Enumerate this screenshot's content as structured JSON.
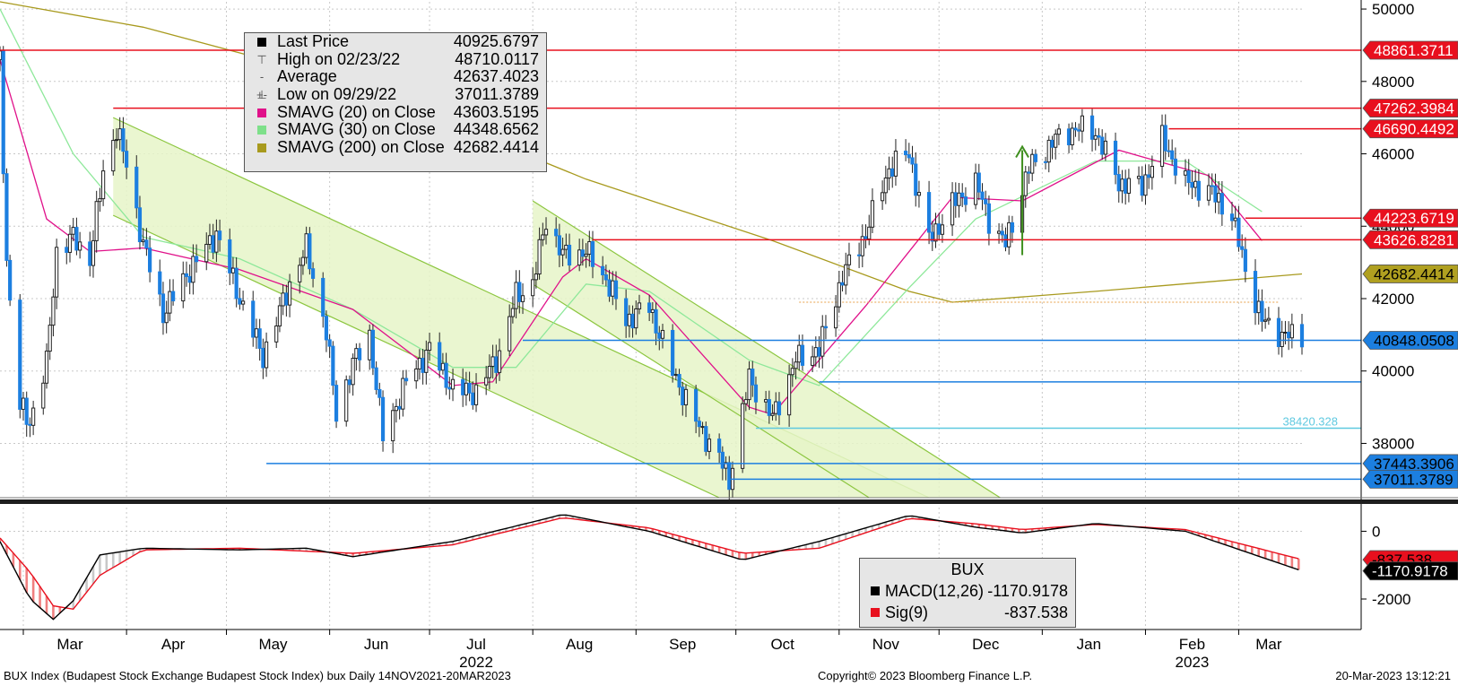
{
  "chart_data": {
    "type": "candlestick",
    "x_start": "2022-02-22",
    "x_end": "2023-03-20",
    "ylim": [
      36500,
      50200
    ],
    "y_ticks": [
      38000,
      40000,
      42000,
      44000,
      46000,
      48000,
      50000
    ],
    "y_tick_labels": [
      "38000",
      "40000",
      "42000",
      "44000",
      "46000",
      "48000",
      "50000"
    ],
    "month_labels": [
      {
        "label": "Mar",
        "date": "2022-03-15"
      },
      {
        "label": "Apr",
        "date": "2022-04-15"
      },
      {
        "label": "May",
        "date": "2022-05-15"
      },
      {
        "label": "Jun",
        "date": "2022-06-15"
      },
      {
        "label": "Jul",
        "date": "2022-07-15"
      },
      {
        "label": "Aug",
        "date": "2022-08-15"
      },
      {
        "label": "Sep",
        "date": "2022-09-15"
      },
      {
        "label": "Oct",
        "date": "2022-10-15"
      },
      {
        "label": "Nov",
        "date": "2022-11-15"
      },
      {
        "label": "Dec",
        "date": "2022-12-15"
      },
      {
        "label": "Jan",
        "date": "2023-01-15"
      },
      {
        "label": "Feb",
        "date": "2023-02-15"
      },
      {
        "label": "Mar",
        "date": "2023-03-10"
      }
    ],
    "year_labels": [
      {
        "label": "2022",
        "date": "2022-07-15"
      },
      {
        "label": "2023",
        "date": "2023-02-15"
      }
    ],
    "closes": [
      {
        "d": "2022-02-22",
        "v": 48600
      },
      {
        "d": "2022-02-24",
        "v": 43000
      },
      {
        "d": "2022-02-28",
        "v": 39000
      },
      {
        "d": "2022-03-03",
        "v": 38600
      },
      {
        "d": "2022-03-08",
        "v": 40200
      },
      {
        "d": "2022-03-11",
        "v": 43300
      },
      {
        "d": "2022-03-16",
        "v": 43700
      },
      {
        "d": "2022-03-21",
        "v": 43100
      },
      {
        "d": "2022-03-25",
        "v": 45500
      },
      {
        "d": "2022-03-29",
        "v": 46700
      },
      {
        "d": "2022-04-01",
        "v": 45700
      },
      {
        "d": "2022-04-06",
        "v": 43500
      },
      {
        "d": "2022-04-12",
        "v": 41600
      },
      {
        "d": "2022-04-20",
        "v": 42800
      },
      {
        "d": "2022-04-28",
        "v": 43800
      },
      {
        "d": "2022-05-05",
        "v": 42000
      },
      {
        "d": "2022-05-12",
        "v": 40400
      },
      {
        "d": "2022-05-20",
        "v": 42400
      },
      {
        "d": "2022-05-25",
        "v": 43400
      },
      {
        "d": "2022-05-31",
        "v": 41100
      },
      {
        "d": "2022-06-03",
        "v": 38800
      },
      {
        "d": "2022-06-08",
        "v": 40200
      },
      {
        "d": "2022-06-13",
        "v": 41000
      },
      {
        "d": "2022-06-17",
        "v": 38200
      },
      {
        "d": "2022-06-24",
        "v": 39700
      },
      {
        "d": "2022-07-01",
        "v": 40600
      },
      {
        "d": "2022-07-08",
        "v": 39500
      },
      {
        "d": "2022-07-15",
        "v": 39400
      },
      {
        "d": "2022-07-22",
        "v": 40500
      },
      {
        "d": "2022-07-27",
        "v": 42100
      },
      {
        "d": "2022-08-01",
        "v": 42400
      },
      {
        "d": "2022-08-05",
        "v": 44200
      },
      {
        "d": "2022-08-10",
        "v": 43200
      },
      {
        "d": "2022-08-17",
        "v": 43300
      },
      {
        "d": "2022-08-22",
        "v": 42700
      },
      {
        "d": "2022-08-29",
        "v": 41400
      },
      {
        "d": "2022-09-05",
        "v": 41800
      },
      {
        "d": "2022-09-12",
        "v": 40000
      },
      {
        "d": "2022-09-19",
        "v": 38600
      },
      {
        "d": "2022-09-26",
        "v": 37600
      },
      {
        "d": "2022-09-29",
        "v": 37000
      },
      {
        "d": "2022-10-05",
        "v": 39800
      },
      {
        "d": "2022-10-12",
        "v": 38700
      },
      {
        "d": "2022-10-19",
        "v": 40300
      },
      {
        "d": "2022-10-26",
        "v": 40600
      },
      {
        "d": "2022-11-02",
        "v": 42600
      },
      {
        "d": "2022-11-09",
        "v": 43800
      },
      {
        "d": "2022-11-16",
        "v": 45600
      },
      {
        "d": "2022-11-22",
        "v": 46000
      },
      {
        "d": "2022-11-28",
        "v": 43600
      },
      {
        "d": "2022-12-05",
        "v": 44600
      },
      {
        "d": "2022-12-12",
        "v": 45200
      },
      {
        "d": "2022-12-16",
        "v": 44200
      },
      {
        "d": "2022-12-21",
        "v": 43500
      },
      {
        "d": "2022-12-28",
        "v": 45600
      },
      {
        "d": "2023-01-05",
        "v": 46400
      },
      {
        "d": "2023-01-11",
        "v": 46700
      },
      {
        "d": "2023-01-17",
        "v": 46600
      },
      {
        "d": "2023-01-24",
        "v": 45200
      },
      {
        "d": "2023-01-31",
        "v": 45100
      },
      {
        "d": "2023-02-06",
        "v": 46400
      },
      {
        "d": "2023-02-13",
        "v": 45200
      },
      {
        "d": "2023-02-20",
        "v": 45000
      },
      {
        "d": "2023-02-27",
        "v": 44300
      },
      {
        "d": "2023-03-03",
        "v": 42800
      },
      {
        "d": "2023-03-08",
        "v": 41400
      },
      {
        "d": "2023-03-14",
        "v": 41000
      },
      {
        "d": "2023-03-20",
        "v": 40926
      }
    ],
    "sma20": [
      {
        "d": "2022-02-22",
        "v": 48600
      },
      {
        "d": "2022-03-08",
        "v": 44200
      },
      {
        "d": "2022-03-21",
        "v": 43300
      },
      {
        "d": "2022-04-06",
        "v": 43400
      },
      {
        "d": "2022-05-05",
        "v": 42800
      },
      {
        "d": "2022-06-08",
        "v": 41700
      },
      {
        "d": "2022-07-08",
        "v": 39600
      },
      {
        "d": "2022-07-20",
        "v": 39700
      },
      {
        "d": "2022-08-10",
        "v": 42600
      },
      {
        "d": "2022-08-17",
        "v": 43100
      },
      {
        "d": "2022-09-05",
        "v": 42100
      },
      {
        "d": "2022-10-05",
        "v": 39000
      },
      {
        "d": "2022-10-12",
        "v": 38800
      },
      {
        "d": "2022-11-09",
        "v": 41800
      },
      {
        "d": "2022-12-05",
        "v": 44800
      },
      {
        "d": "2022-12-26",
        "v": 44700
      },
      {
        "d": "2023-01-24",
        "v": 46100
      },
      {
        "d": "2023-02-20",
        "v": 45400
      },
      {
        "d": "2023-03-08",
        "v": 43600
      }
    ],
    "sma30": [
      {
        "d": "2022-02-22",
        "v": 50000
      },
      {
        "d": "2022-03-16",
        "v": 46000
      },
      {
        "d": "2022-04-06",
        "v": 43700
      },
      {
        "d": "2022-05-05",
        "v": 43100
      },
      {
        "d": "2022-06-08",
        "v": 41700
      },
      {
        "d": "2022-07-08",
        "v": 40100
      },
      {
        "d": "2022-07-27",
        "v": 40100
      },
      {
        "d": "2022-08-17",
        "v": 42400
      },
      {
        "d": "2022-09-05",
        "v": 42200
      },
      {
        "d": "2022-10-05",
        "v": 40300
      },
      {
        "d": "2022-10-26",
        "v": 39600
      },
      {
        "d": "2022-11-22",
        "v": 42300
      },
      {
        "d": "2022-12-12",
        "v": 44200
      },
      {
        "d": "2023-01-17",
        "v": 45800
      },
      {
        "d": "2023-02-13",
        "v": 45800
      },
      {
        "d": "2023-03-08",
        "v": 44400
      }
    ],
    "sma200": [
      {
        "d": "2022-02-22",
        "v": 50200
      },
      {
        "d": "2022-04-06",
        "v": 49500
      },
      {
        "d": "2022-05-25",
        "v": 48300
      },
      {
        "d": "2022-07-08",
        "v": 46800
      },
      {
        "d": "2022-08-17",
        "v": 45300
      },
      {
        "d": "2022-10-12",
        "v": 43600
      },
      {
        "d": "2022-11-22",
        "v": 42200
      },
      {
        "d": "2022-12-05",
        "v": 41900
      },
      {
        "d": "2023-01-17",
        "v": 42200
      },
      {
        "d": "2023-03-20",
        "v": 42682
      }
    ],
    "horizontal_lines": [
      {
        "value": 48861.3711,
        "color": "#e8101e",
        "start": "2022-02-22"
      },
      {
        "value": 47262.3984,
        "color": "#e8101e",
        "start": "2022-03-28"
      },
      {
        "value": 46690.4492,
        "color": "#e8101e",
        "start": "2023-02-08"
      },
      {
        "value": 44223.6719,
        "color": "#e8101e",
        "start": "2023-03-03"
      },
      {
        "value": 43626.8281,
        "color": "#e8101e",
        "start": "2022-08-19"
      },
      {
        "value": 40848.0508,
        "color": "#1c7fe0",
        "start": "2022-07-29"
      },
      {
        "value": 39700,
        "color": "#1c7fe0",
        "start": "2022-10-26"
      },
      {
        "value": 38420.328,
        "color": "#5fc9e0",
        "start": "2022-10-07"
      },
      {
        "value": 37443.3906,
        "color": "#1c7fe0",
        "start": "2022-05-13"
      },
      {
        "value": 37011.3789,
        "color": "#1c7fe0",
        "start": "2022-09-29"
      }
    ],
    "right_labels": [
      {
        "text": "48861.3711",
        "value": 48861.3711,
        "bg": "#e8101e",
        "fg": "#ffffff"
      },
      {
        "text": "47262.3984",
        "value": 47262.3984,
        "bg": "#e8101e",
        "fg": "#ffffff"
      },
      {
        "text": "46690.4492",
        "value": 46690.4492,
        "bg": "#e8101e",
        "fg": "#ffffff"
      },
      {
        "text": "44223.6719",
        "value": 44223.6719,
        "bg": "#e8101e",
        "fg": "#ffffff"
      },
      {
        "text": "43626.8281",
        "value": 43626.8281,
        "bg": "#e8101e",
        "fg": "#ffffff"
      },
      {
        "text": "42682.4414",
        "value": 42682.4414,
        "bg": "#b0a020",
        "fg": "#000000"
      },
      {
        "text": "40848.0508",
        "value": 40848.0508,
        "bg": "#1c7fe0",
        "fg": "#000000"
      },
      {
        "text": "37443.3906",
        "value": 37443.3906,
        "bg": "#1c7fe0",
        "fg": "#000000"
      },
      {
        "text": "37011.3789",
        "value": 37011.3789,
        "bg": "#1c7fe0",
        "fg": "#000000"
      }
    ],
    "cyan_label": {
      "text": "38420.328",
      "value": 38420.328
    },
    "channels": [
      {
        "start": "2022-03-28",
        "upper_start": 47000,
        "lower_start": 44300,
        "end": "2022-09-26",
        "end_value": 36500
      },
      {
        "start": "2022-08-01",
        "upper_start": 44700,
        "lower_start": 42400,
        "end": "2022-11-10",
        "end_value": 36500
      }
    ],
    "arrow": {
      "date": "2022-12-26",
      "from": 43200,
      "to": 46200
    },
    "dotted_line": {
      "value": 41900,
      "start": "2022-10-20",
      "end": "2023-03-13"
    },
    "macd": {
      "ylim": [
        -2900,
        700
      ],
      "y_ticks": [
        0,
        -2000
      ],
      "y_tick_labels": [
        "0",
        "-2000"
      ],
      "macd_line": [
        {
          "d": "2022-02-22",
          "v": -300
        },
        {
          "d": "2022-03-03",
          "v": -2000
        },
        {
          "d": "2022-03-10",
          "v": -2600
        },
        {
          "d": "2022-03-16",
          "v": -2050
        },
        {
          "d": "2022-03-24",
          "v": -700
        },
        {
          "d": "2022-04-06",
          "v": -500
        },
        {
          "d": "2022-05-05",
          "v": -550
        },
        {
          "d": "2022-05-25",
          "v": -500
        },
        {
          "d": "2022-06-08",
          "v": -750
        },
        {
          "d": "2022-07-08",
          "v": -300
        },
        {
          "d": "2022-08-02",
          "v": 300
        },
        {
          "d": "2022-08-10",
          "v": 500
        },
        {
          "d": "2022-09-05",
          "v": 0
        },
        {
          "d": "2022-10-03",
          "v": -850
        },
        {
          "d": "2022-10-26",
          "v": -300
        },
        {
          "d": "2022-11-22",
          "v": 470
        },
        {
          "d": "2022-12-12",
          "v": 120
        },
        {
          "d": "2022-12-26",
          "v": -50
        },
        {
          "d": "2023-01-17",
          "v": 230
        },
        {
          "d": "2023-02-13",
          "v": 0
        },
        {
          "d": "2023-03-20",
          "v": -1171
        }
      ],
      "signal_line": [
        {
          "d": "2022-02-22",
          "v": -200
        },
        {
          "d": "2022-03-03",
          "v": -1200
        },
        {
          "d": "2022-03-10",
          "v": -2200
        },
        {
          "d": "2022-03-16",
          "v": -2300
        },
        {
          "d": "2022-03-24",
          "v": -1300
        },
        {
          "d": "2022-04-06",
          "v": -550
        },
        {
          "d": "2022-05-05",
          "v": -500
        },
        {
          "d": "2022-06-08",
          "v": -650
        },
        {
          "d": "2022-07-08",
          "v": -400
        },
        {
          "d": "2022-08-10",
          "v": 400
        },
        {
          "d": "2022-09-05",
          "v": 100
        },
        {
          "d": "2022-10-03",
          "v": -650
        },
        {
          "d": "2022-10-26",
          "v": -500
        },
        {
          "d": "2022-11-22",
          "v": 380
        },
        {
          "d": "2022-12-12",
          "v": 220
        },
        {
          "d": "2022-12-26",
          "v": 50
        },
        {
          "d": "2023-01-17",
          "v": 200
        },
        {
          "d": "2023-02-13",
          "v": 50
        },
        {
          "d": "2023-03-20",
          "v": -838
        }
      ],
      "right_labels": [
        {
          "text": "-837.538",
          "value": -837.538,
          "bg": "#e8101e",
          "fg": "#000000"
        },
        {
          "text": "-1170.9178",
          "value": -1170.9178,
          "bg": "#000000",
          "fg": "#ffffff"
        }
      ]
    }
  },
  "legend": {
    "rows": [
      {
        "name": "Last Price",
        "value": "40925.6797",
        "mark": "#000000",
        "glyph": ""
      },
      {
        "name": "High on 02/23/22",
        "value": "48710.0117",
        "mark": "",
        "glyph": "⊤"
      },
      {
        "name": "Average",
        "value": "42637.4023",
        "mark": "",
        "glyph": "-+-"
      },
      {
        "name": "Low on 09/29/22",
        "value": "37011.3789",
        "mark": "",
        "glyph": "⊥"
      },
      {
        "name": "SMAVG (20)  on Close",
        "value": "43603.5195",
        "mark": "#e0118a",
        "glyph": ""
      },
      {
        "name": "SMAVG (30)  on Close",
        "value": "44348.6562",
        "mark": "#7ee08a",
        "glyph": ""
      },
      {
        "name": "SMAVG (200)  on Close",
        "value": "42682.4414",
        "mark": "#a89a1e",
        "glyph": ""
      }
    ]
  },
  "macd_legend": {
    "title": "BUX",
    "rows": [
      {
        "name": "MACD(12,26)",
        "value": "-1170.9178",
        "mark": "#000000"
      },
      {
        "name": "Sig(9)",
        "value": "-837.538",
        "mark": "#e8101e"
      }
    ]
  },
  "footer": {
    "left": "BUX Index (Budapest Stock Exchange Budapest Stock Index) bux  Daily 14NOV2021-20MAR2023",
    "center": "Copyright© 2023 Bloomberg Finance L.P.",
    "right": "20-Mar-2023 13:12:21"
  },
  "colors": {
    "up": "#222222",
    "down": "#1c7fe0",
    "sma20": "#e0118a",
    "sma30": "#8ee89a",
    "sma200": "#a89a1e",
    "channel_fill": "#e6f5c8",
    "channel_line": "#8cc63f",
    "arrow": "#3f8f1f",
    "macd_line": "#000000",
    "signal_line": "#e8101e"
  }
}
